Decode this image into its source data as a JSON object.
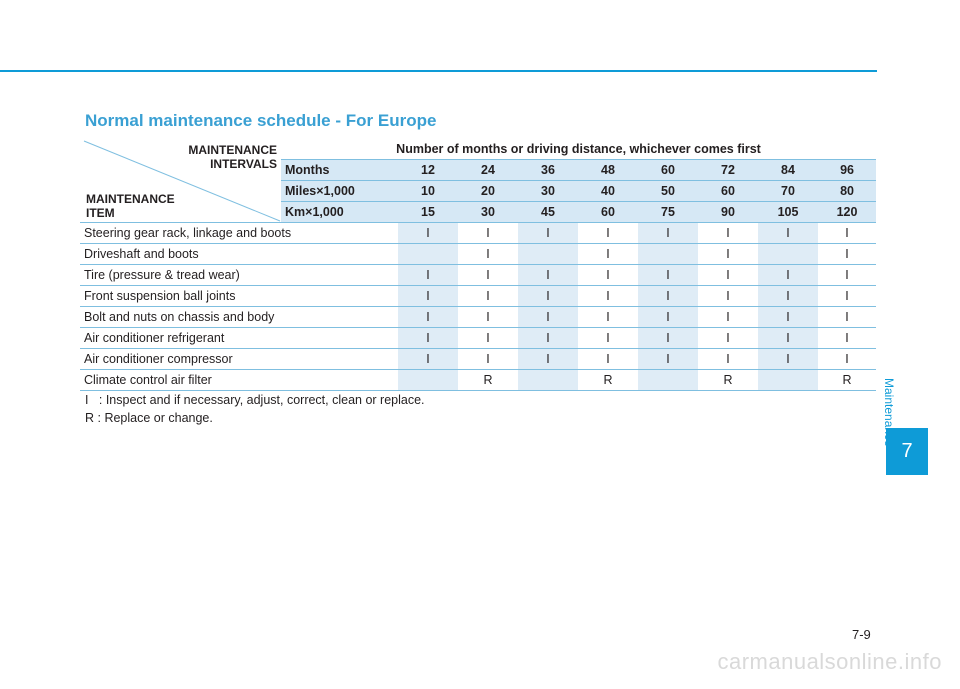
{
  "title": "Normal maintenance schedule - For Europe",
  "table": {
    "corner_intervals": [
      "MAINTENANCE",
      "INTERVALS"
    ],
    "corner_item": [
      "MAINTENANCE",
      "ITEM"
    ],
    "header_note": "Number of months or driving distance, whichever comes first",
    "headers": [
      {
        "label": "Months",
        "values": [
          "12",
          "24",
          "36",
          "48",
          "60",
          "72",
          "84",
          "96"
        ]
      },
      {
        "label": "Miles×1,000",
        "values": [
          "10",
          "20",
          "30",
          "40",
          "50",
          "60",
          "70",
          "80"
        ]
      },
      {
        "label": "Km×1,000",
        "values": [
          "15",
          "30",
          "45",
          "60",
          "75",
          "90",
          "105",
          "120"
        ]
      }
    ],
    "rows": [
      {
        "item": "Steering gear rack, linkage and boots",
        "values": [
          "I",
          "I",
          "I",
          "I",
          "I",
          "I",
          "I",
          "I"
        ]
      },
      {
        "item": "Driveshaft and boots",
        "values": [
          "",
          "I",
          "",
          "I",
          "",
          "I",
          "",
          "I"
        ]
      },
      {
        "item": "Tire (pressure & tread wear)",
        "values": [
          "I",
          "I",
          "I",
          "I",
          "I",
          "I",
          "I",
          "I"
        ]
      },
      {
        "item": "Front suspension ball joints",
        "values": [
          "I",
          "I",
          "I",
          "I",
          "I",
          "I",
          "I",
          "I"
        ]
      },
      {
        "item": "Bolt and nuts on chassis and body",
        "values": [
          "I",
          "I",
          "I",
          "I",
          "I",
          "I",
          "I",
          "I"
        ]
      },
      {
        "item": "Air conditioner refrigerant",
        "values": [
          "I",
          "I",
          "I",
          "I",
          "I",
          "I",
          "I",
          "I"
        ]
      },
      {
        "item": "Air conditioner compressor",
        "values": [
          "I",
          "I",
          "I",
          "I",
          "I",
          "I",
          "I",
          "I"
        ]
      },
      {
        "item": "Climate control air filter",
        "values": [
          "",
          "R",
          "",
          "R",
          "",
          "R",
          "",
          "R"
        ]
      }
    ]
  },
  "legend": [
    "I   : Inspect and if necessary, adjust, correct, clean or replace.",
    "R : Replace or change."
  ],
  "side_tab": {
    "label": "Maintenance",
    "chapter": "7"
  },
  "page_number": "7-9",
  "watermark": "carmanualsonline.info",
  "colors": {
    "accent": "#0e9bd7",
    "title": "#3aa0d3",
    "header_fill": "#d6e8f5",
    "cell_shade": "#dfecf6"
  }
}
